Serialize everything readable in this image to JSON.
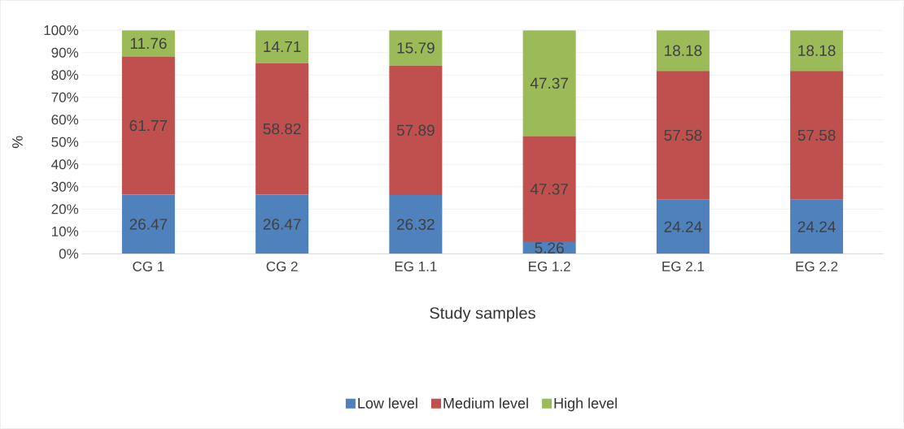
{
  "chart_data": {
    "type": "bar",
    "stacked": true,
    "xlabel": "Study samples",
    "ylabel": "%",
    "categories": [
      "CG 1",
      "CG 2",
      "EG 1.1",
      "EG 1.2",
      "EG 2.1",
      "EG 2.2"
    ],
    "series": [
      {
        "name": "Low level",
        "color": "#4f81bd",
        "values": [
          26.47,
          26.47,
          26.32,
          5.26,
          24.24,
          24.24
        ]
      },
      {
        "name": "Medium level",
        "color": "#c0504d",
        "values": [
          61.77,
          58.82,
          57.89,
          47.37,
          57.58,
          57.58
        ]
      },
      {
        "name": "High level",
        "color": "#9bbb59",
        "values": [
          11.76,
          14.71,
          15.79,
          47.37,
          18.18,
          18.18
        ]
      }
    ],
    "ylim": [
      0,
      100
    ],
    "yticks": [
      {
        "value": 0,
        "label": "0%"
      },
      {
        "value": 10,
        "label": "10%"
      },
      {
        "value": 20,
        "label": "20%"
      },
      {
        "value": 30,
        "label": "30%"
      },
      {
        "value": 40,
        "label": "40%"
      },
      {
        "value": 50,
        "label": "50%"
      },
      {
        "value": 60,
        "label": "60%"
      },
      {
        "value": 70,
        "label": "70%"
      },
      {
        "value": 80,
        "label": "80%"
      },
      {
        "value": 90,
        "label": "90%"
      },
      {
        "value": 100,
        "label": "100%"
      }
    ],
    "grid": "y",
    "legend": "bottom",
    "data_labels": true
  }
}
